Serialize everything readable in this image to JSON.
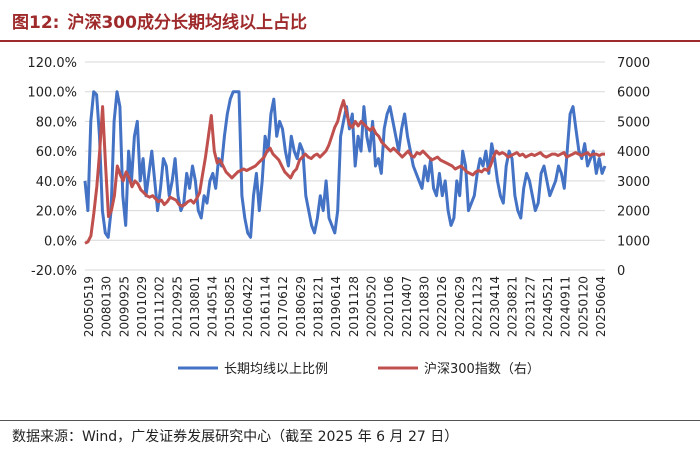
{
  "figure": {
    "label": "图12:",
    "title": "沪深300成分长期均线以上占比"
  },
  "source_note": "数据来源：Wind，广发证券发展研究中心（截至 2025 年 6 月 27 日）",
  "colors": {
    "series1": "#4472c4",
    "series2": "#c0504d",
    "title": "#9e2a2b",
    "grid": "#d9d9d9"
  },
  "chart_data": {
    "type": "line",
    "title": "沪深300成分长期均线以上占比",
    "x_tick_labels": [
      "20050519",
      "20080130",
      "20090925",
      "20101029",
      "20111202",
      "20120925",
      "20130801",
      "20140514",
      "20150825",
      "20160422",
      "20161114",
      "20170612",
      "20180629",
      "20181221",
      "20190614",
      "20191128",
      "20200520",
      "20201106",
      "20210407",
      "20210830",
      "20220126",
      "20220629",
      "20221123",
      "20230414",
      "20230821",
      "20231227",
      "20240521",
      "20240911",
      "20250120",
      "20250604"
    ],
    "y_left": {
      "label": "",
      "min": -20,
      "max": 120,
      "ticks": [
        "-20.0%",
        "0.0%",
        "20.0%",
        "40.0%",
        "60.0%",
        "80.0%",
        "100.0%",
        "120.0%"
      ]
    },
    "y_right": {
      "label": "",
      "min": 0,
      "max": 7000,
      "ticks": [
        "0",
        "1000",
        "2000",
        "3000",
        "4000",
        "5000",
        "6000",
        "7000"
      ]
    },
    "legend_position": "bottom",
    "series": [
      {
        "name": "长期均线以上比例",
        "axis": "left",
        "values": [
          40,
          20,
          80,
          100,
          98,
          70,
          20,
          5,
          2,
          20,
          80,
          100,
          90,
          30,
          10,
          60,
          40,
          70,
          80,
          40,
          55,
          30,
          45,
          60,
          40,
          20,
          35,
          55,
          50,
          30,
          40,
          55,
          30,
          20,
          25,
          45,
          35,
          50,
          40,
          20,
          15,
          30,
          25,
          40,
          45,
          35,
          55,
          50,
          70,
          85,
          95,
          100,
          100,
          100,
          30,
          15,
          5,
          2,
          30,
          45,
          20,
          40,
          70,
          60,
          85,
          95,
          70,
          80,
          75,
          60,
          50,
          70,
          60,
          55,
          65,
          60,
          30,
          20,
          10,
          5,
          15,
          30,
          20,
          40,
          15,
          10,
          5,
          20,
          70,
          80,
          90,
          75,
          85,
          50,
          70,
          60,
          90,
          70,
          60,
          80,
          50,
          55,
          45,
          75,
          85,
          90,
          80,
          70,
          60,
          75,
          85,
          70,
          60,
          50,
          45,
          40,
          35,
          50,
          40,
          55,
          35,
          30,
          45,
          30,
          40,
          20,
          10,
          15,
          40,
          30,
          60,
          50,
          20,
          25,
          30,
          45,
          55,
          50,
          60,
          45,
          65,
          55,
          40,
          30,
          25,
          50,
          60,
          55,
          30,
          20,
          15,
          35,
          45,
          40,
          30,
          20,
          25,
          45,
          50,
          40,
          30,
          35,
          40,
          50,
          45,
          35,
          60,
          85,
          90,
          75,
          60,
          55,
          65,
          50,
          55,
          60,
          45,
          55,
          45,
          50
        ]
      },
      {
        "name": "沪深300指数（右）",
        "axis": "right",
        "values": [
          900,
          950,
          1150,
          1900,
          2800,
          4000,
          5500,
          3500,
          1800,
          2000,
          2500,
          3500,
          3200,
          3000,
          3300,
          3100,
          2800,
          3000,
          2900,
          2700,
          2600,
          2500,
          2450,
          2500,
          2400,
          2300,
          2350,
          2200,
          2300,
          2450,
          2400,
          2350,
          2200,
          2150,
          2200,
          2300,
          2350,
          2250,
          2400,
          2600,
          3200,
          3800,
          4500,
          5200,
          4000,
          3600,
          3700,
          3500,
          3300,
          3200,
          3100,
          3200,
          3300,
          3350,
          3400,
          3350,
          3400,
          3450,
          3500,
          3600,
          3700,
          3800,
          4000,
          4100,
          3900,
          3800,
          3700,
          3500,
          3300,
          3200,
          3100,
          3300,
          3400,
          3700,
          3800,
          3900,
          3800,
          3750,
          3850,
          3900,
          3800,
          3900,
          4000,
          4200,
          4500,
          4800,
          5000,
          5400,
          5700,
          5300,
          4900,
          4800,
          5000,
          4850,
          5000,
          4900,
          4800,
          4700,
          4800,
          4600,
          4500,
          4300,
          4200,
          4100,
          4000,
          4100,
          4000,
          3900,
          3800,
          3900,
          4000,
          3850,
          3800,
          3950,
          3900,
          4000,
          3900,
          3800,
          3700,
          3750,
          3800,
          3700,
          3650,
          3600,
          3550,
          3500,
          3400,
          3450,
          3500,
          3400,
          3300,
          3250,
          3200,
          3300,
          3350,
          3300,
          3400,
          3350,
          3500,
          3800,
          4000,
          3900,
          3950,
          3900,
          3800,
          3850,
          3900,
          3950,
          3850,
          3900,
          3800,
          3850,
          3900,
          3850,
          3900,
          3950,
          3850,
          3800,
          3850,
          3900,
          3900,
          3850,
          3900,
          3950,
          3800,
          3850,
          3900,
          3950,
          3900,
          3850,
          3900,
          3950,
          3850,
          3900,
          3900,
          3850,
          3900,
          3900
        ]
      }
    ]
  }
}
